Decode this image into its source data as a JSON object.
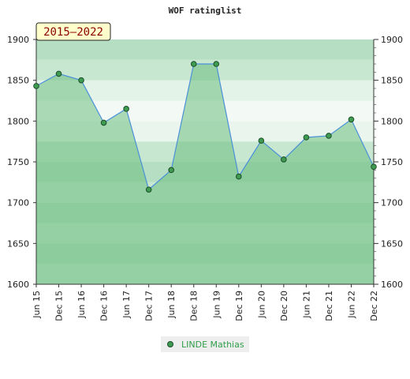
{
  "chart_data": {
    "type": "area",
    "title": "WOF ratinglist",
    "badge": "2015—2022",
    "xlabel": "",
    "ylabel": "",
    "categories": [
      "Jun 15",
      "Dec 15",
      "Jun 16",
      "Dec 16",
      "Jun 17",
      "Dec 17",
      "Jun 18",
      "Dec 18",
      "Jun 19",
      "Dec 19",
      "Jun 20",
      "Dec 20",
      "Jun 21",
      "Dec 21",
      "Jun 22",
      "Dec 22"
    ],
    "series": [
      {
        "name": "LINDE Mathias",
        "values": [
          1843,
          1858,
          1850,
          1798,
          1815,
          1716,
          1740,
          1870,
          1870,
          1732,
          1776,
          1753,
          1780,
          1782,
          1802,
          1744
        ]
      }
    ],
    "ylim": [
      1600,
      1900
    ],
    "yticks": [
      1600,
      1650,
      1700,
      1750,
      1800,
      1850,
      1900
    ],
    "grid": true,
    "legend": "bottom",
    "colors": {
      "area_fill": "#6bbd7f",
      "line": "#4a90d9",
      "marker": "#3e9b4f",
      "band_light": "#f2f9f4",
      "band_mid": "#b8dfc4",
      "band_dark": "#97d0a8"
    }
  }
}
